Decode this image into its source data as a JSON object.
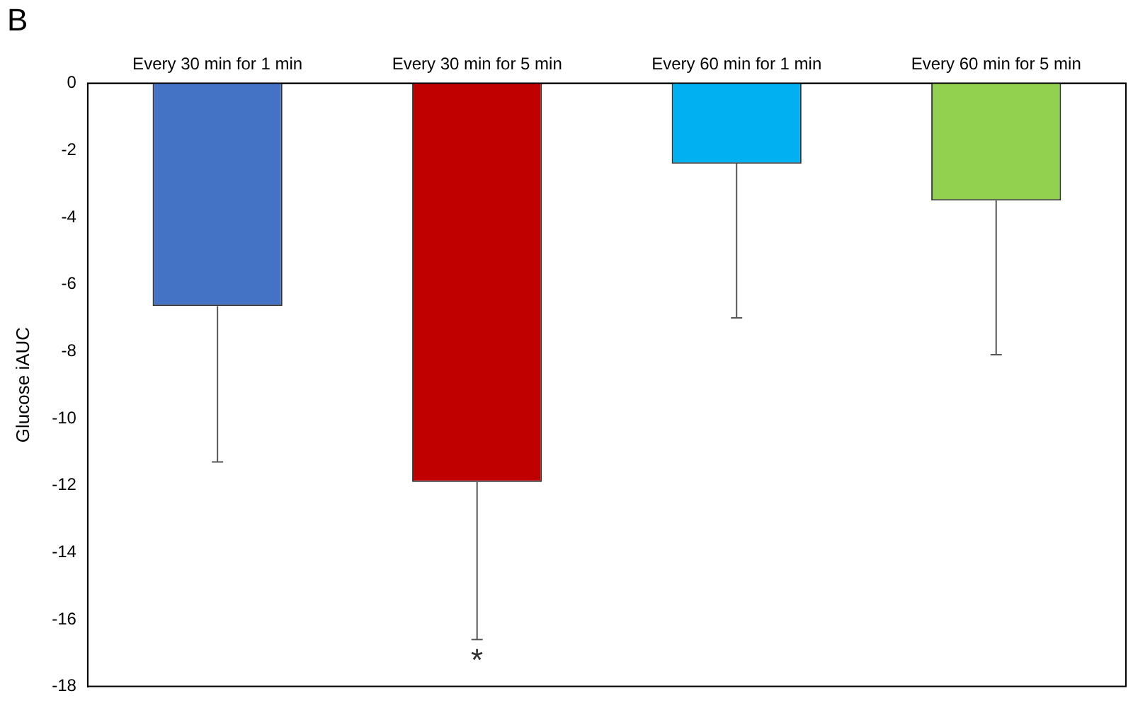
{
  "chart_data": {
    "type": "bar",
    "title": "B",
    "ylabel": "Glucose iAUC",
    "categories": [
      "Every 30 min for 1 min",
      "Every 30 min for 5 min",
      "Every 60 min for 1 min",
      "Every 60 min for 5 min"
    ],
    "values": [
      -6.65,
      -11.9,
      -2.4,
      -3.5
    ],
    "colors": [
      "#4472c4",
      "#c00000",
      "#00b0f0",
      "#92d050"
    ],
    "errors": [
      [
        -11.3,
        -6.65
      ],
      [
        -16.6,
        -11.9
      ],
      [
        -7.0,
        -2.4
      ],
      [
        -8.1,
        -3.5
      ]
    ],
    "ylim": [
      -18,
      0
    ],
    "yticks": [
      -18,
      -16,
      -14,
      -12,
      -10,
      -8,
      -6,
      -4,
      -2,
      0
    ],
    "annotations": [
      "*"
    ],
    "grid": false,
    "legend": false
  }
}
